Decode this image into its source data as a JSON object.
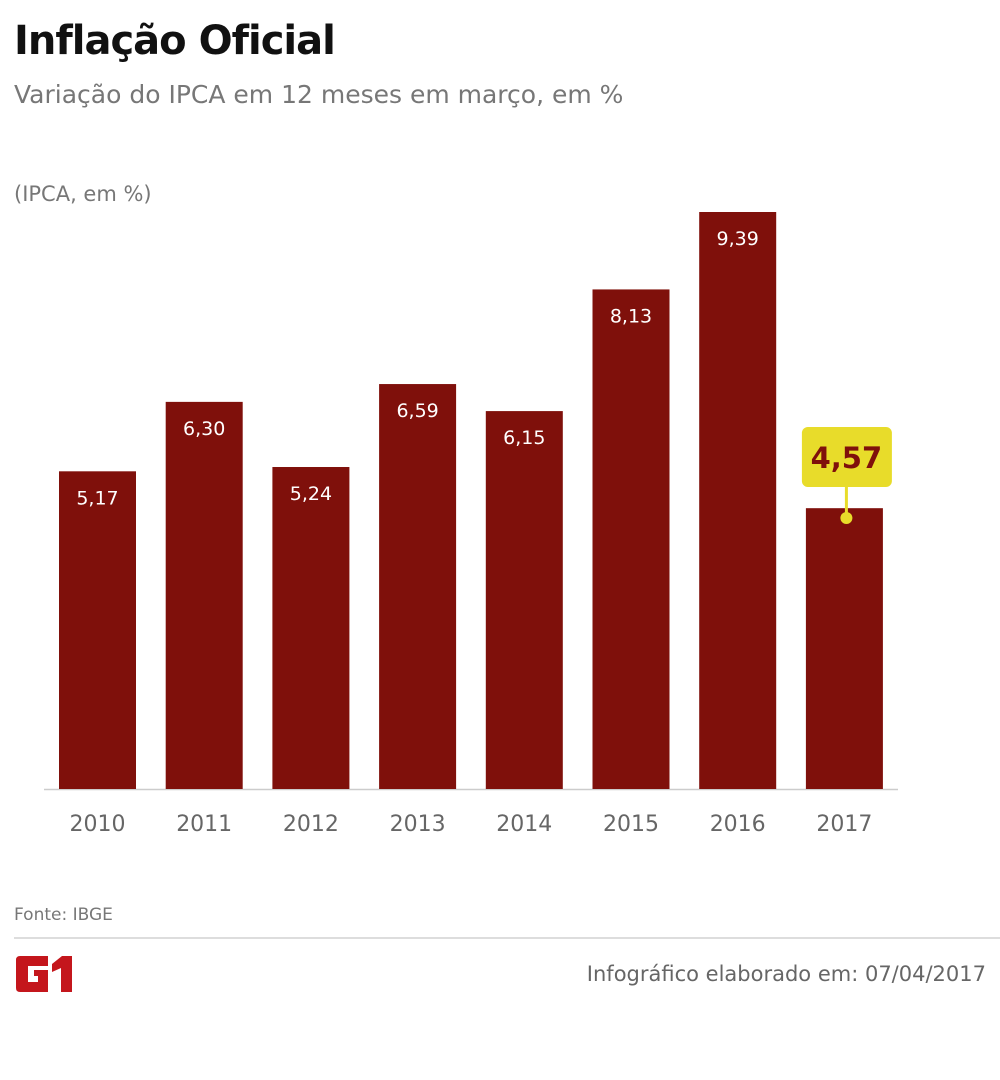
{
  "header": {
    "title": "Inflação Oficial",
    "subtitle": "Variação do IPCA em 12 meses em março, em %"
  },
  "chart_data": {
    "type": "bar",
    "ylabel": "(IPCA, em %)",
    "categories": [
      "2010",
      "2011",
      "2012",
      "2013",
      "2014",
      "2015",
      "2016",
      "2017"
    ],
    "values": [
      5.17,
      6.3,
      5.24,
      6.59,
      6.15,
      8.13,
      9.39,
      4.57
    ],
    "labels": [
      "5,17",
      "6,30",
      "5,24",
      "6,59",
      "6,15",
      "8,13",
      "9,39",
      "4,57"
    ],
    "highlight_index": 7,
    "ylim": [
      0,
      9.39
    ],
    "grid": false,
    "colors": {
      "bar": "#7f100b",
      "highlight_box": "#e8dc2a",
      "highlight_text": "#7f100b",
      "axis": "#cccccc"
    }
  },
  "footer": {
    "source": "Fonte: IBGE",
    "logo": "G1",
    "credit": "Infográfico elaborado em: 07/04/2017",
    "logo_color": "#c4161c"
  }
}
